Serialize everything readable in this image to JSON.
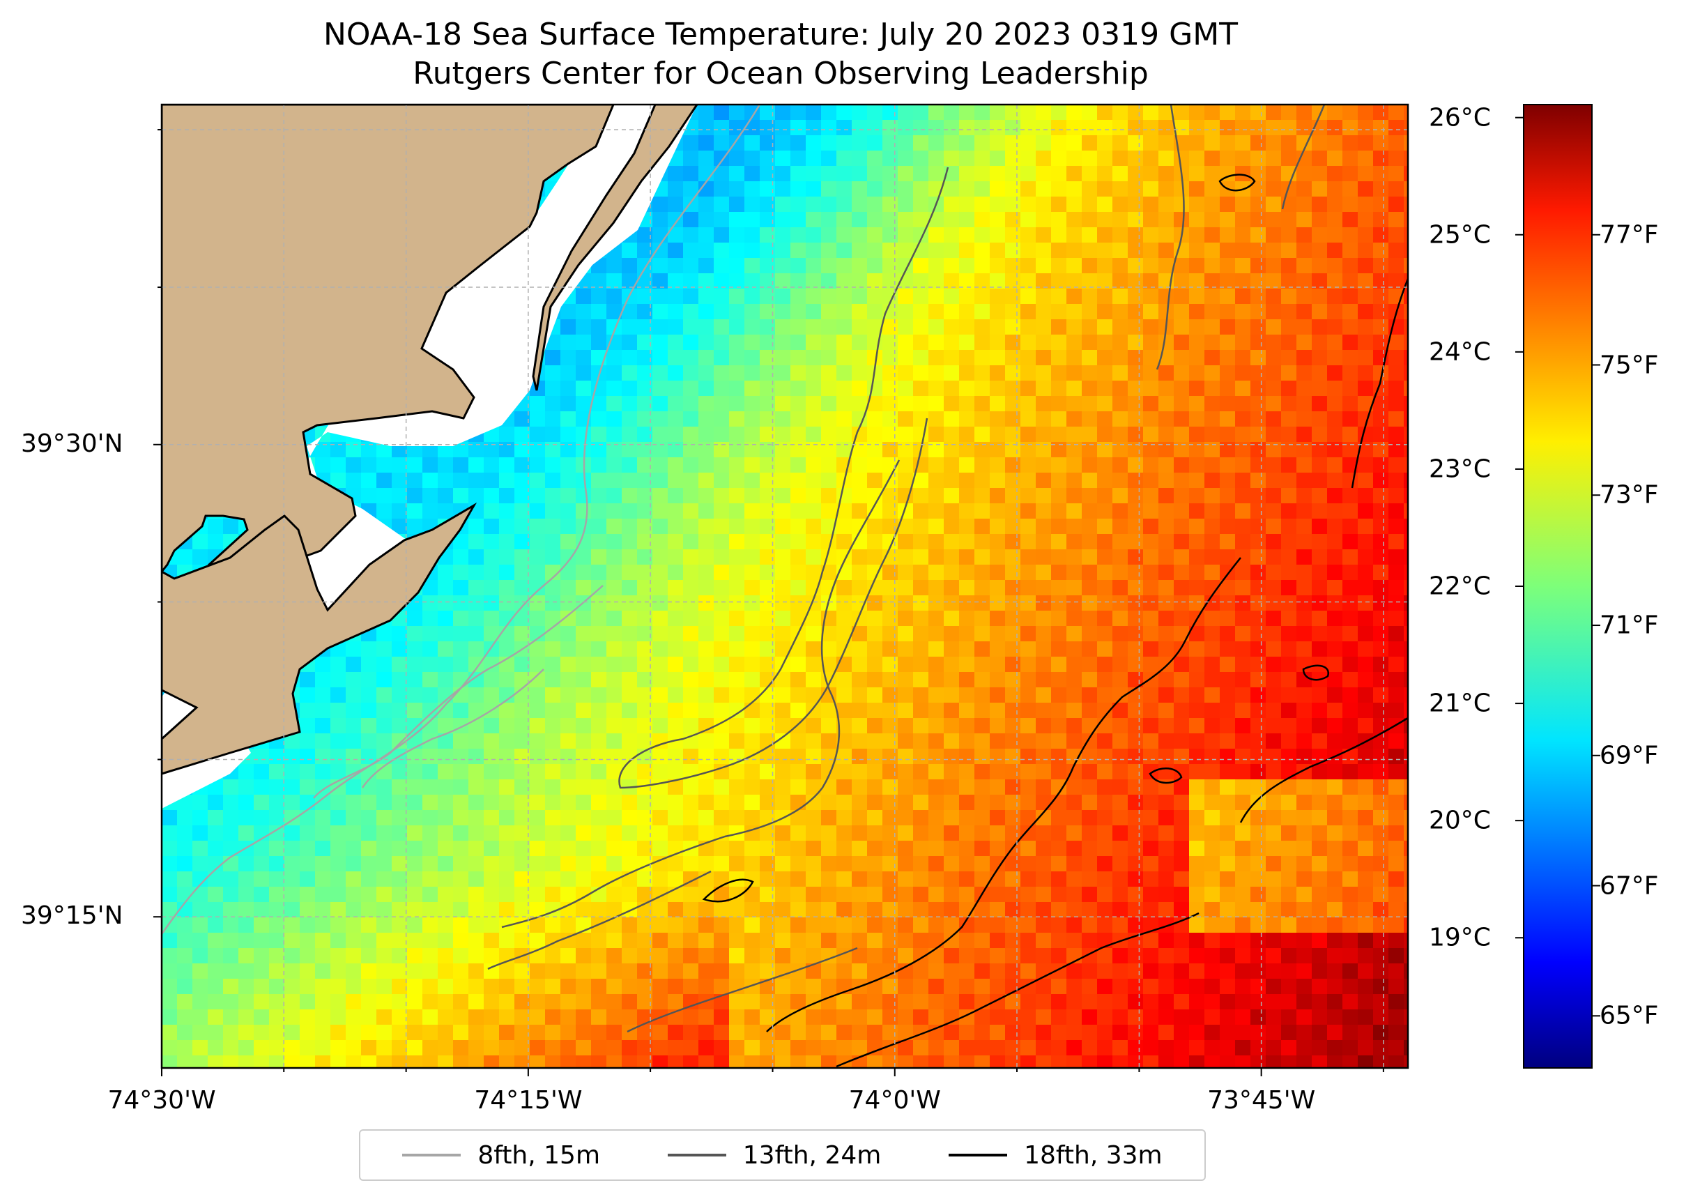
{
  "title_line1": "NOAA-18 Sea Surface Temperature: July 20 2023 0319 GMT",
  "title_line2": "Rutgers Center for Ocean Observing Leadership",
  "y_axis": [
    {
      "label": "39°30'N",
      "lat": 39.5
    },
    {
      "label": "39°15'N",
      "lat": 39.25
    }
  ],
  "x_axis": [
    {
      "label": "74°30'W",
      "lon": -74.5
    },
    {
      "label": "74°15'W",
      "lon": -74.25
    },
    {
      "label": "74°0'W",
      "lon": -74.0
    },
    {
      "label": "73°45'W",
      "lon": -73.75
    }
  ],
  "map_extent": {
    "lon": [
      -74.5,
      -73.65
    ],
    "lat": [
      39.17,
      39.68
    ]
  },
  "colorbar": {
    "celsius": [
      {
        "label": "26°C",
        "value": 26
      },
      {
        "label": "25°C",
        "value": 25
      },
      {
        "label": "24°C",
        "value": 24
      },
      {
        "label": "23°C",
        "value": 23
      },
      {
        "label": "22°C",
        "value": 22
      },
      {
        "label": "21°C",
        "value": 21
      },
      {
        "label": "20°C",
        "value": 20
      },
      {
        "label": "19°C",
        "value": 19
      }
    ],
    "fahrenheit": [
      {
        "label": "77°F",
        "value": 77
      },
      {
        "label": "75°F",
        "value": 75
      },
      {
        "label": "73°F",
        "value": 73
      },
      {
        "label": "71°F",
        "value": 71
      },
      {
        "label": "69°F",
        "value": 69
      },
      {
        "label": "67°F",
        "value": 67
      },
      {
        "label": "65°F",
        "value": 65
      }
    ],
    "range_f": [
      64.2,
      79.0
    ],
    "colormap": "jet"
  },
  "legend": [
    {
      "label": "8fth, 15m",
      "color": "#a6a6a6"
    },
    {
      "label": "13fth, 24m",
      "color": "#555555"
    },
    {
      "label": "18fth, 33m",
      "color": "#000000"
    }
  ],
  "colors": {
    "land": "#d2b48c",
    "grid": "#b0b0b0"
  }
}
